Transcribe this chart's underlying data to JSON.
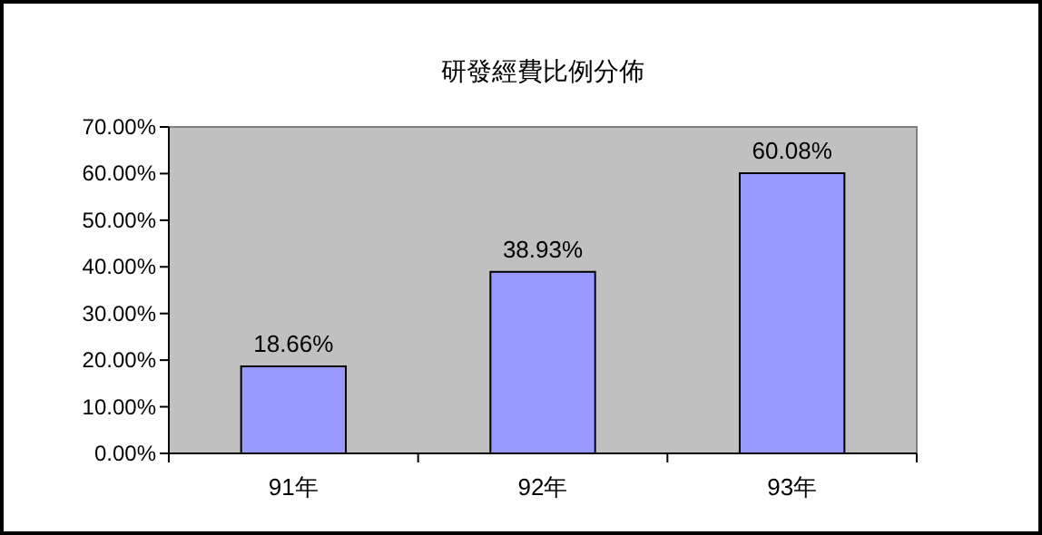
{
  "chart_data": {
    "type": "bar",
    "title": "研發經費比例分佈",
    "categories": [
      "91年",
      "92年",
      "93年"
    ],
    "values": [
      18.66,
      38.93,
      60.08
    ],
    "value_labels": [
      "18.66%",
      "38.93%",
      "60.08%"
    ],
    "color": "#9999ff",
    "ylim": [
      0,
      70
    ],
    "yticks": [
      {
        "value": 0,
        "label": "0.00%"
      },
      {
        "value": 10,
        "label": "10.00%"
      },
      {
        "value": 20,
        "label": "20.00%"
      },
      {
        "value": 30,
        "label": "30.00%"
      },
      {
        "value": 40,
        "label": "40.00%"
      },
      {
        "value": 50,
        "label": "50.00%"
      },
      {
        "value": 60,
        "label": "60.00%"
      },
      {
        "value": 70,
        "label": "70.00%"
      }
    ]
  }
}
